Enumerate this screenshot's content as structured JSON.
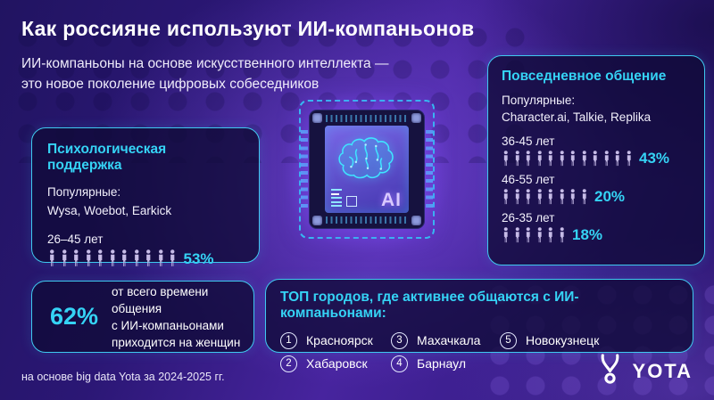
{
  "header": {
    "title": "Как россияне используют ИИ-компаньонов",
    "subtitle_line1": "ИИ-компаньоны на основе искусственного интеллекта —",
    "subtitle_line2": "это новое поколение цифровых собеседников"
  },
  "psych_panel": {
    "heading": "Психологическая поддержка",
    "popular_label": "Популярные:",
    "popular_apps": "Wysa, Woebot, Earkick",
    "age_label": "26–45 лет",
    "icon_count": 11,
    "percent": "53%"
  },
  "daily_panel": {
    "heading": "Повседневное общение",
    "popular_label": "Популярные:",
    "popular_apps": "Character.ai, Talkie, Replika",
    "rows": [
      {
        "age_label": "36-45 лет",
        "icon_count": 12,
        "percent": "43%"
      },
      {
        "age_label": "46-55 лет",
        "icon_count": 8,
        "percent": "20%"
      },
      {
        "age_label": "26-35 лет",
        "icon_count": 6,
        "percent": "18%"
      }
    ]
  },
  "women_stat": {
    "value": "62%",
    "line1": "от всего времени общения",
    "line2": "с ИИ-компаньонами",
    "line3": "приходится на женщин"
  },
  "cities": {
    "heading": "ТОП городов, где активнее общаются с ИИ-компаньонами:",
    "items": [
      {
        "num": "1",
        "name": "Красноярск"
      },
      {
        "num": "2",
        "name": "Хабаровск"
      },
      {
        "num": "3",
        "name": "Махачкала"
      },
      {
        "num": "4",
        "name": "Барнаул"
      },
      {
        "num": "5",
        "name": "Новокузнецк"
      }
    ]
  },
  "chip": {
    "label": "AI"
  },
  "footer": {
    "source": "на основе big data Yota за 2024-2025 гг."
  },
  "brand": {
    "name": "YOTA"
  },
  "colors": {
    "accent_cyan": "#35d3f5",
    "panel_border": "#3fc9ef",
    "background_purple": "#47249e",
    "icon_lavender": "#c6bbe7"
  },
  "chart_data": [
    {
      "type": "bar",
      "subtype": "pictograph",
      "title": "Психологическая поддержка",
      "popular_apps": [
        "Wysa",
        "Woebot",
        "Earkick"
      ],
      "categories": [
        "26–45 лет"
      ],
      "values": [
        53
      ],
      "unit": "%",
      "icon_counts": [
        11
      ]
    },
    {
      "type": "bar",
      "subtype": "pictograph",
      "title": "Повседневное общение",
      "popular_apps": [
        "Character.ai",
        "Talkie",
        "Replika"
      ],
      "categories": [
        "36-45 лет",
        "46-55 лет",
        "26-35 лет"
      ],
      "values": [
        43,
        20,
        18
      ],
      "unit": "%",
      "icon_counts": [
        12,
        8,
        6
      ]
    },
    {
      "type": "table",
      "subtype": "single-stat",
      "value": 62,
      "unit": "%",
      "label": "от всего времени общения с ИИ-компаньонами приходится на женщин"
    },
    {
      "type": "table",
      "subtype": "ranking",
      "title": "ТОП городов, где активнее общаются с ИИ-компаньонами",
      "items": [
        "Красноярск",
        "Хабаровск",
        "Махачкала",
        "Барнаул",
        "Новокузнецк"
      ]
    }
  ]
}
